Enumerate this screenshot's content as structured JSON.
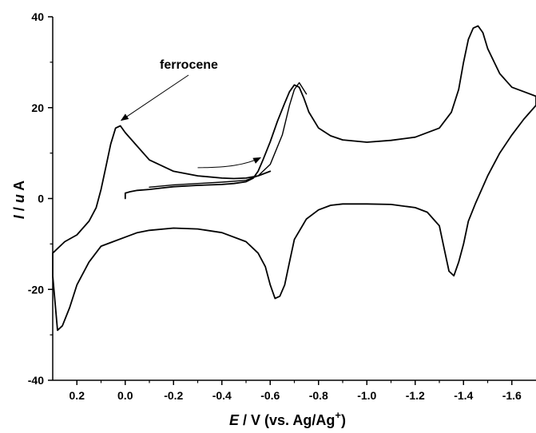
{
  "chart_data": {
    "type": "line",
    "xlabel": {
      "italic": "E",
      "rest": " / V (vs. Ag/Ag",
      "sup": "+",
      "end": ")"
    },
    "ylabel": {
      "italic": "I",
      "mid": " / ",
      "italic2": "u",
      "end": " A"
    },
    "xlim": [
      0.3,
      -1.7
    ],
    "ylim": [
      -40,
      40
    ],
    "xticks": [
      0.2,
      0.0,
      -0.2,
      -0.4,
      -0.6,
      -0.8,
      -1.0,
      -1.2,
      -1.4,
      -1.6
    ],
    "xtick_labels": [
      "0.2",
      "0.0",
      "-0.2",
      "-0.4",
      "-0.6",
      "-0.8",
      "-1.0",
      "-1.2",
      "-1.4",
      "-1.6"
    ],
    "yticks": [
      -40,
      -20,
      0,
      20,
      40
    ],
    "ytick_labels": [
      "-40",
      "-20",
      "0",
      "20",
      "40"
    ],
    "grid": false,
    "line_color": "#000000",
    "series": [
      {
        "x": [
          0.0,
          0.0,
          -0.02,
          -0.05,
          -0.1,
          -0.15,
          -0.2,
          -0.3,
          -0.4,
          -0.45,
          -0.5,
          -0.53,
          -0.55,
          -0.57,
          -0.6,
          -0.63,
          -0.66,
          -0.68,
          -0.7,
          -0.72,
          -0.74,
          -0.76,
          -0.8,
          -0.85,
          -0.9,
          -1.0,
          -1.1,
          -1.2,
          -1.3,
          -1.35,
          -1.38,
          -1.4,
          -1.42,
          -1.44,
          -1.46,
          -1.48,
          -1.5,
          -1.55,
          -1.6,
          -1.65,
          -1.7,
          -1.7,
          -1.65,
          -1.6,
          -1.55,
          -1.5,
          -1.45,
          -1.42,
          -1.4,
          -1.38,
          -1.36,
          -1.34,
          -1.32,
          -1.3,
          -1.25,
          -1.2,
          -1.1,
          -1.0,
          -0.9,
          -0.85,
          -0.8,
          -0.75,
          -0.7,
          -0.68,
          -0.66,
          -0.64,
          -0.62,
          -0.6,
          -0.58,
          -0.55,
          -0.5,
          -0.4,
          -0.3,
          -0.2,
          -0.1,
          -0.05,
          0.0,
          0.05,
          0.1,
          0.15,
          0.2,
          0.23,
          0.26,
          0.28,
          0.3,
          0.3,
          0.25,
          0.2,
          0.15,
          0.12,
          0.1,
          0.08,
          0.06,
          0.04,
          0.02,
          0.0,
          -0.05,
          -0.1,
          -0.2,
          -0.3,
          -0.4,
          -0.45,
          -0.5,
          -0.55,
          -0.6
        ],
        "y": [
          0.0,
          1.2,
          1.5,
          1.8,
          2.0,
          2.3,
          2.6,
          2.9,
          3.1,
          3.3,
          3.7,
          4.5,
          6.0,
          8.5,
          12.5,
          17.0,
          21.0,
          23.5,
          25.0,
          24.5,
          22.0,
          19.0,
          15.5,
          13.8,
          12.9,
          12.4,
          12.8,
          13.5,
          15.5,
          19.0,
          24.0,
          30.0,
          35.0,
          37.5,
          38.0,
          36.5,
          33.0,
          27.5,
          24.5,
          23.5,
          22.5,
          20.5,
          17.5,
          14.0,
          10.0,
          5.0,
          -1.0,
          -5.0,
          -10.0,
          -14.0,
          -17.0,
          -16.0,
          -11.0,
          -6.0,
          -3.0,
          -2.0,
          -1.3,
          -1.2,
          -1.2,
          -1.5,
          -2.5,
          -4.5,
          -9.0,
          -14.0,
          -19.0,
          -21.5,
          -22.0,
          -19.0,
          -15.0,
          -12.0,
          -9.5,
          -7.5,
          -6.7,
          -6.5,
          -7.0,
          -7.5,
          -8.5,
          -9.5,
          -10.5,
          -14.0,
          -19.0,
          -24.0,
          -28.0,
          -29.0,
          -17.0,
          -12.0,
          -9.5,
          -8.0,
          -5.0,
          -2.0,
          2.0,
          7.0,
          12.0,
          15.5,
          16.0,
          14.5,
          11.5,
          8.5,
          6.0,
          5.0,
          4.5,
          4.4,
          4.5,
          5.0,
          6.0
        ]
      },
      {
        "x": [
          -0.1,
          -0.2,
          -0.3,
          -0.4,
          -0.5,
          -0.55,
          -0.6,
          -0.65,
          -0.68,
          -0.7,
          -0.72,
          -0.75
        ],
        "y": [
          2.5,
          3.0,
          3.3,
          3.6,
          4.0,
          5.0,
          7.5,
          14.0,
          20.5,
          24.0,
          25.5,
          23.0
        ]
      }
    ],
    "annotations": [
      {
        "text": "ferrocene"
      }
    ],
    "scan_arrow": {
      "x": [
        -0.3,
        -0.42,
        -0.5,
        -0.56
      ],
      "y": [
        6.8,
        6.8,
        7.4,
        9.0
      ]
    },
    "ferrocene_arrow_tip": {
      "x": 0.03,
      "y": 16.5
    }
  }
}
